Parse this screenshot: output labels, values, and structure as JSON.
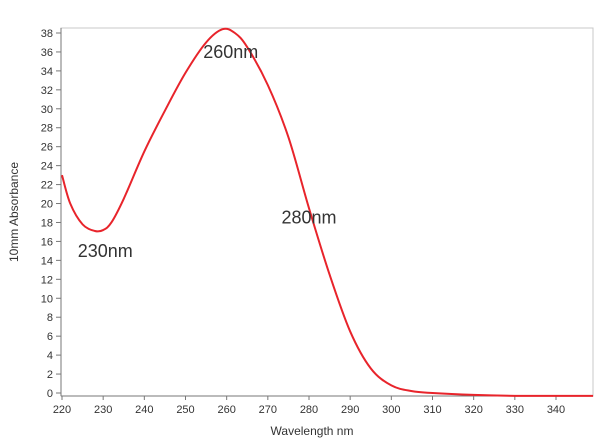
{
  "chart_data": {
    "type": "line",
    "title": "",
    "xlabel": "Wavelength nm",
    "ylabel": "10mm Absorbance",
    "xlim": [
      219.5,
      349
    ],
    "ylim": [
      -0.5,
      38.5
    ],
    "xticks": [
      "220",
      "230",
      "240",
      "250",
      "260",
      "270",
      "280",
      "290",
      "300",
      "310",
      "320",
      "330",
      "340"
    ],
    "yticks": [
      "0",
      "2",
      "4",
      "6",
      "8",
      "10",
      "12",
      "14",
      "16",
      "18",
      "20",
      "22",
      "24",
      "26",
      "28",
      "30",
      "32",
      "34",
      "36",
      "38"
    ],
    "grid": false,
    "series": [
      {
        "name": "absorbance",
        "color": "#e8242b",
        "x": [
          220,
          222,
          225,
          228,
          230,
          232,
          235,
          240,
          245,
          250,
          255,
          259,
          262,
          265,
          270,
          275,
          280,
          285,
          290,
          295,
          300,
          305,
          310,
          320,
          330,
          340,
          349
        ],
        "y": [
          23,
          20,
          17.8,
          17.1,
          17.2,
          18,
          20.5,
          25.5,
          29.8,
          33.8,
          37,
          38.4,
          38,
          36.5,
          32.5,
          27,
          19.5,
          12.5,
          6.5,
          2.6,
          0.8,
          0.2,
          0,
          -0.2,
          -0.3,
          -0.3,
          -0.3
        ]
      }
    ],
    "annotations": [
      {
        "text": "260nm",
        "x": 261,
        "y": 36
      },
      {
        "text": "280nm",
        "x": 280,
        "y": 18.5
      },
      {
        "text": "230nm",
        "x": 230.5,
        "y": 15
      }
    ]
  }
}
